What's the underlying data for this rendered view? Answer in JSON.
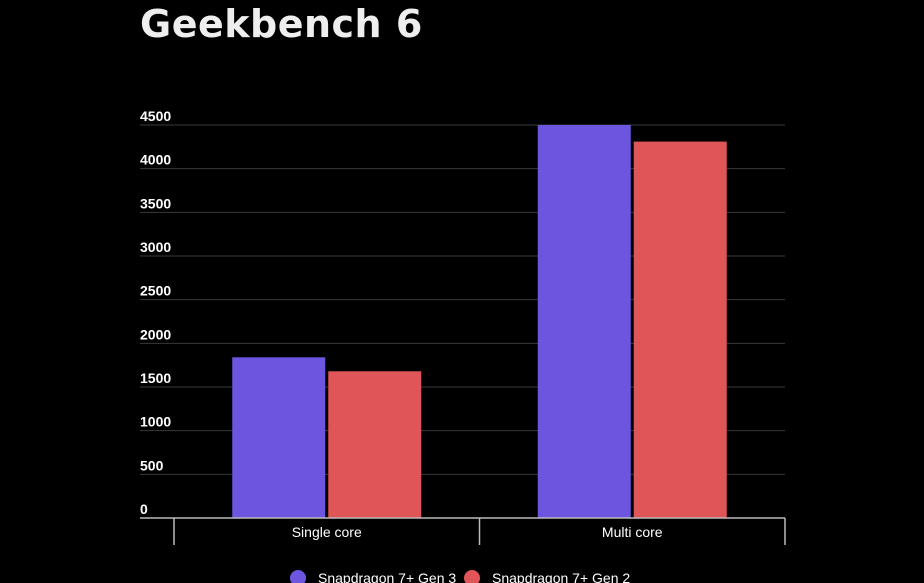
{
  "chart_data": {
    "type": "bar",
    "title": "Geekbench 6",
    "categories": [
      "Single core",
      "Multi core"
    ],
    "series": [
      {
        "name": "Snapdragon 7+ Gen 3",
        "values": [
          1840,
          4500
        ],
        "color": "#6e55e0"
      },
      {
        "name": "Snapdragon 7+ Gen 2",
        "values": [
          1680,
          4310
        ],
        "color": "#e05557"
      }
    ],
    "ylim": [
      0,
      4500
    ],
    "yticks": [
      0,
      500,
      1000,
      1500,
      2000,
      2500,
      3000,
      3500,
      4000,
      4500
    ],
    "xlabel": "",
    "ylabel": "",
    "grid": true,
    "legend": "bottom"
  }
}
